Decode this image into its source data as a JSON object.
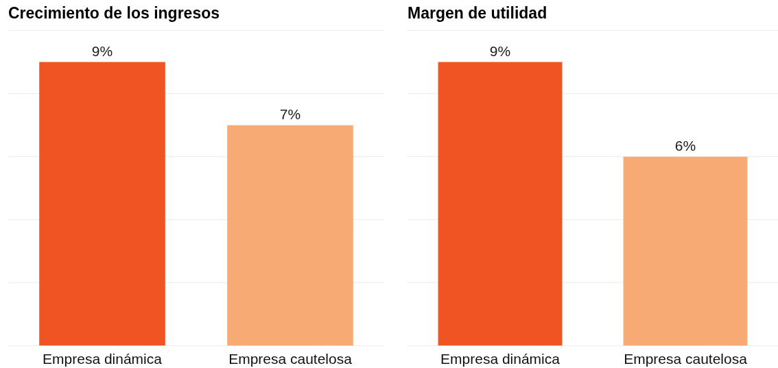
{
  "chart_data": [
    {
      "type": "bar",
      "title": "Crecimiento de los ingresos",
      "categories": [
        "Empresa dinámica",
        "Empresa cautelosa"
      ],
      "values": [
        9,
        7
      ],
      "colors": [
        "#f05423",
        "#f8aa74"
      ],
      "value_labels": [
        "9%",
        "7%"
      ],
      "ylim": [
        0,
        10
      ],
      "yticks": [
        {
          "value": 0,
          "label": null
        },
        {
          "value": 2,
          "label": null
        },
        {
          "value": 4,
          "label": null
        },
        {
          "value": 6,
          "label": null
        },
        {
          "value": 8,
          "label": null
        },
        {
          "value": 10,
          "label": null
        }
      ],
      "grid": "y",
      "tick_labels": "x"
    },
    {
      "type": "bar",
      "title": "Margen de utilidad",
      "categories": [
        "Empresa dinámica",
        "Empresa cautelosa"
      ],
      "values": [
        9,
        6
      ],
      "colors": [
        "#f05423",
        "#f8aa74"
      ],
      "value_labels": [
        "9%",
        "6%"
      ],
      "ylim": [
        0,
        10
      ],
      "yticks": [
        {
          "value": 0,
          "label": null
        },
        {
          "value": 2,
          "label": null
        },
        {
          "value": 4,
          "label": null
        },
        {
          "value": 6,
          "label": null
        },
        {
          "value": 8,
          "label": null
        },
        {
          "value": 10,
          "label": null
        }
      ],
      "grid": "y",
      "tick_labels": "x"
    }
  ]
}
